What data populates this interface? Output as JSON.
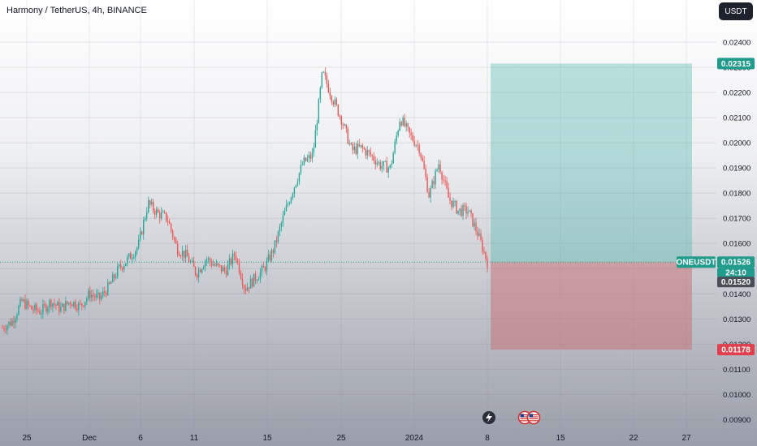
{
  "header": {
    "title": "Harmony / TetherUS, 4h, BINANCE",
    "currency_button": "USDT"
  },
  "colors": {
    "up": "#26a69a",
    "down": "#ef5350",
    "target_zone": "#4db6ac",
    "stop_zone": "#c76b70",
    "last_price_tag": "#1f9c8c",
    "stop_tag": "#e33e4b",
    "dark_tag": "#4a4e58"
  },
  "chart_data": {
    "type": "candlestick",
    "symbol": "ONEUSDT",
    "y_range": [
      0.0088,
      0.0252
    ],
    "y_ticks": [
      "0.02400",
      "0.02300",
      "0.02200",
      "0.02100",
      "0.02000",
      "0.01900",
      "0.01800",
      "0.01700",
      "0.01600",
      "0.01500",
      "0.01400",
      "0.01300",
      "0.01200",
      "0.01100",
      "0.01000",
      "0.00900"
    ],
    "y_tick_values": [
      0.024,
      0.023,
      0.022,
      0.021,
      0.02,
      0.019,
      0.018,
      0.017,
      0.016,
      0.015,
      0.014,
      0.013,
      0.012,
      0.011,
      0.01,
      0.009
    ],
    "x_ticks": [
      "25",
      "Dec",
      "6",
      "11",
      "15",
      "25",
      "2024",
      "8",
      "15",
      "22",
      "27"
    ],
    "last_price": {
      "symbol": "ONEUSDT",
      "value": "0.01526",
      "countdown": "24:10"
    },
    "secondary_price": "0.01520",
    "position": {
      "entry": 0.01526,
      "target": 0.02315,
      "target_label": "0.02315",
      "stop": 0.01178,
      "stop_label": "0.01178"
    },
    "price_path": [
      [
        0.01265,
        0.0125
      ],
      [
        0.0129,
        0.0128
      ],
      [
        0.0137,
        0.0136
      ],
      [
        0.0134,
        0.0125
      ],
      [
        0.0133,
        0.0132
      ],
      [
        0.0137,
        0.0136
      ],
      [
        0.0134,
        0.0131
      ],
      [
        0.0137,
        0.0136
      ],
      [
        0.0135,
        0.0132
      ],
      [
        0.014,
        0.0138
      ],
      [
        0.0138,
        0.0135
      ],
      [
        0.0143,
        0.0142
      ],
      [
        0.015,
        0.0149
      ],
      [
        0.0154,
        0.0153
      ],
      [
        0.0159,
        0.0158
      ],
      [
        0.0176,
        0.0175
      ],
      [
        0.0172,
        0.0171
      ],
      [
        0.017,
        0.0168
      ],
      [
        0.0158,
        0.0156
      ],
      [
        0.0155,
        0.0153
      ],
      [
        0.0148,
        0.0145
      ],
      [
        0.0154,
        0.0152
      ],
      [
        0.0151,
        0.0149
      ],
      [
        0.0149,
        0.0147
      ],
      [
        0.0156,
        0.0155
      ],
      [
        0.0142,
        0.0137
      ],
      [
        0.0146,
        0.0144
      ],
      [
        0.015,
        0.0148
      ],
      [
        0.0158,
        0.0157
      ],
      [
        0.0171,
        0.017
      ],
      [
        0.0182,
        0.0181
      ],
      [
        0.0192,
        0.0191
      ],
      [
        0.0195,
        0.0194
      ],
      [
        0.0228,
        0.0227
      ],
      [
        0.0218,
        0.0211
      ],
      [
        0.0209,
        0.0206
      ],
      [
        0.0197,
        0.0195
      ],
      [
        0.0198,
        0.0196
      ],
      [
        0.0195,
        0.0192
      ],
      [
        0.0191,
        0.0189
      ],
      [
        0.019,
        0.0186
      ],
      [
        0.021,
        0.0209
      ],
      [
        0.0203,
        0.0201
      ],
      [
        0.0198,
        0.0196
      ],
      [
        0.0179,
        0.0175
      ],
      [
        0.0192,
        0.0191
      ],
      [
        0.0178,
        0.0176
      ],
      [
        0.0173,
        0.0171
      ],
      [
        0.0173,
        0.0172
      ],
      [
        0.0164,
        0.016
      ],
      [
        0.01526,
        0.0152
      ]
    ],
    "event_icons": [
      "lightning-icon",
      "us-flag-icon",
      "us-flag-icon"
    ]
  }
}
